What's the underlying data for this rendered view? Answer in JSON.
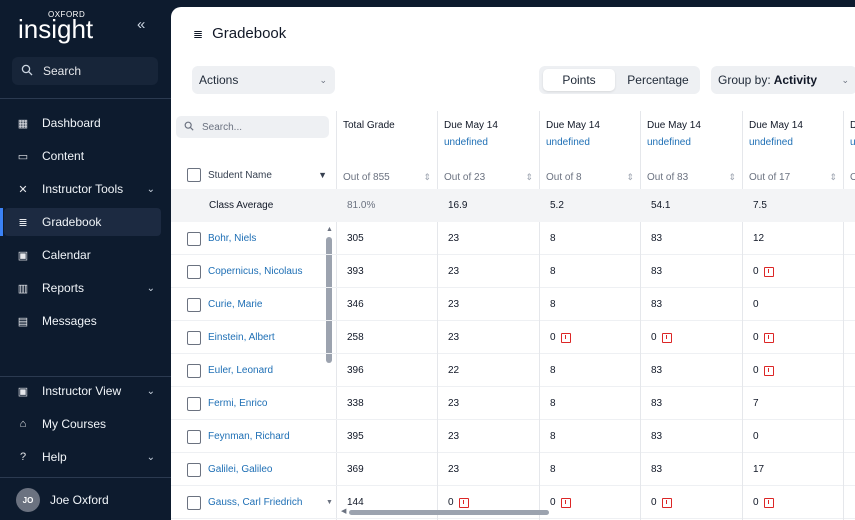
{
  "brand": {
    "small": "OXFORD",
    "big": "insight"
  },
  "sidebar": {
    "search_label": "Search",
    "items": [
      {
        "label": "Dashboard",
        "icon": "dashboard-icon",
        "glyph": "▦"
      },
      {
        "label": "Content",
        "icon": "book-icon",
        "glyph": "▭"
      },
      {
        "label": "Instructor Tools",
        "icon": "tools-icon",
        "glyph": "✕",
        "chevron": true
      },
      {
        "label": "Gradebook",
        "icon": "gradebook-icon",
        "glyph": "≣",
        "active": true
      },
      {
        "label": "Calendar",
        "icon": "calendar-icon",
        "glyph": "▣"
      },
      {
        "label": "Reports",
        "icon": "reports-icon",
        "glyph": "▥",
        "chevron": true
      },
      {
        "label": "Messages",
        "icon": "messages-icon",
        "glyph": "▤"
      }
    ],
    "bottom_items": [
      {
        "label": "Instructor View",
        "icon": "instructor-view-icon",
        "glyph": "▣",
        "chevron": true
      },
      {
        "label": "My Courses",
        "icon": "home-icon",
        "glyph": "⌂"
      },
      {
        "label": "Help",
        "icon": "help-icon",
        "glyph": "?",
        "chevron": true
      }
    ],
    "user": {
      "initials": "JO",
      "name": "Joe Oxford"
    }
  },
  "header": {
    "title": "Gradebook",
    "actions_label": "Actions",
    "toggle": {
      "points": "Points",
      "percentage": "Percentage",
      "selected": "Points"
    },
    "group_by_label": "Group by:",
    "group_by_value": "Activity"
  },
  "table": {
    "search_placeholder": "Search...",
    "student_name_header": "Student Name",
    "class_average_label": "Class Average",
    "columns": [
      {
        "title": "Total Grade",
        "subtitle": "",
        "out_of": "Out of 855",
        "average": "81.0%"
      },
      {
        "title": "Due May 14",
        "subtitle": "undefined",
        "out_of": "Out of 23",
        "average": "16.9"
      },
      {
        "title": "Due May 14",
        "subtitle": "undefined",
        "out_of": "Out of 8",
        "average": "5.2"
      },
      {
        "title": "Due May 14",
        "subtitle": "undefined",
        "out_of": "Out of 83",
        "average": "54.1"
      },
      {
        "title": "Due May 14",
        "subtitle": "undefined",
        "out_of": "Out of 17",
        "average": "7.5"
      },
      {
        "title": "D",
        "subtitle": "u",
        "out_of": "O",
        "average": ""
      }
    ],
    "students": [
      {
        "name": "Bohr, Niels",
        "grades": [
          "305",
          "23",
          "8",
          "83",
          "12"
        ],
        "flags": [
          false,
          false,
          false,
          false,
          false
        ]
      },
      {
        "name": "Copernicus, Nicolaus",
        "grades": [
          "393",
          "23",
          "8",
          "83",
          "0"
        ],
        "flags": [
          false,
          false,
          false,
          false,
          true
        ]
      },
      {
        "name": "Curie, Marie",
        "grades": [
          "346",
          "23",
          "8",
          "83",
          "0"
        ],
        "flags": [
          false,
          false,
          false,
          false,
          false
        ]
      },
      {
        "name": "Einstein, Albert",
        "grades": [
          "258",
          "23",
          "0",
          "0",
          "0"
        ],
        "flags": [
          false,
          false,
          true,
          true,
          true
        ]
      },
      {
        "name": "Euler, Leonard",
        "grades": [
          "396",
          "22",
          "8",
          "83",
          "0"
        ],
        "flags": [
          false,
          false,
          false,
          false,
          true
        ]
      },
      {
        "name": "Fermi, Enrico",
        "grades": [
          "338",
          "23",
          "8",
          "83",
          "7"
        ],
        "flags": [
          false,
          false,
          false,
          false,
          false
        ]
      },
      {
        "name": "Feynman, Richard",
        "grades": [
          "395",
          "23",
          "8",
          "83",
          "0"
        ],
        "flags": [
          false,
          false,
          false,
          false,
          false
        ]
      },
      {
        "name": "Galilei, Galileo",
        "grades": [
          "369",
          "23",
          "8",
          "83",
          "17"
        ],
        "flags": [
          false,
          false,
          false,
          false,
          false
        ]
      },
      {
        "name": "Gauss, Carl Friedrich",
        "grades": [
          "144",
          "0",
          "0",
          "0",
          "0"
        ],
        "flags": [
          false,
          true,
          true,
          true,
          true
        ]
      }
    ]
  },
  "colors": {
    "sidebar_bg": "#0d1b2e",
    "link": "#1e6fb5",
    "flag": "#dc2626",
    "accent": "#3b82f6"
  }
}
